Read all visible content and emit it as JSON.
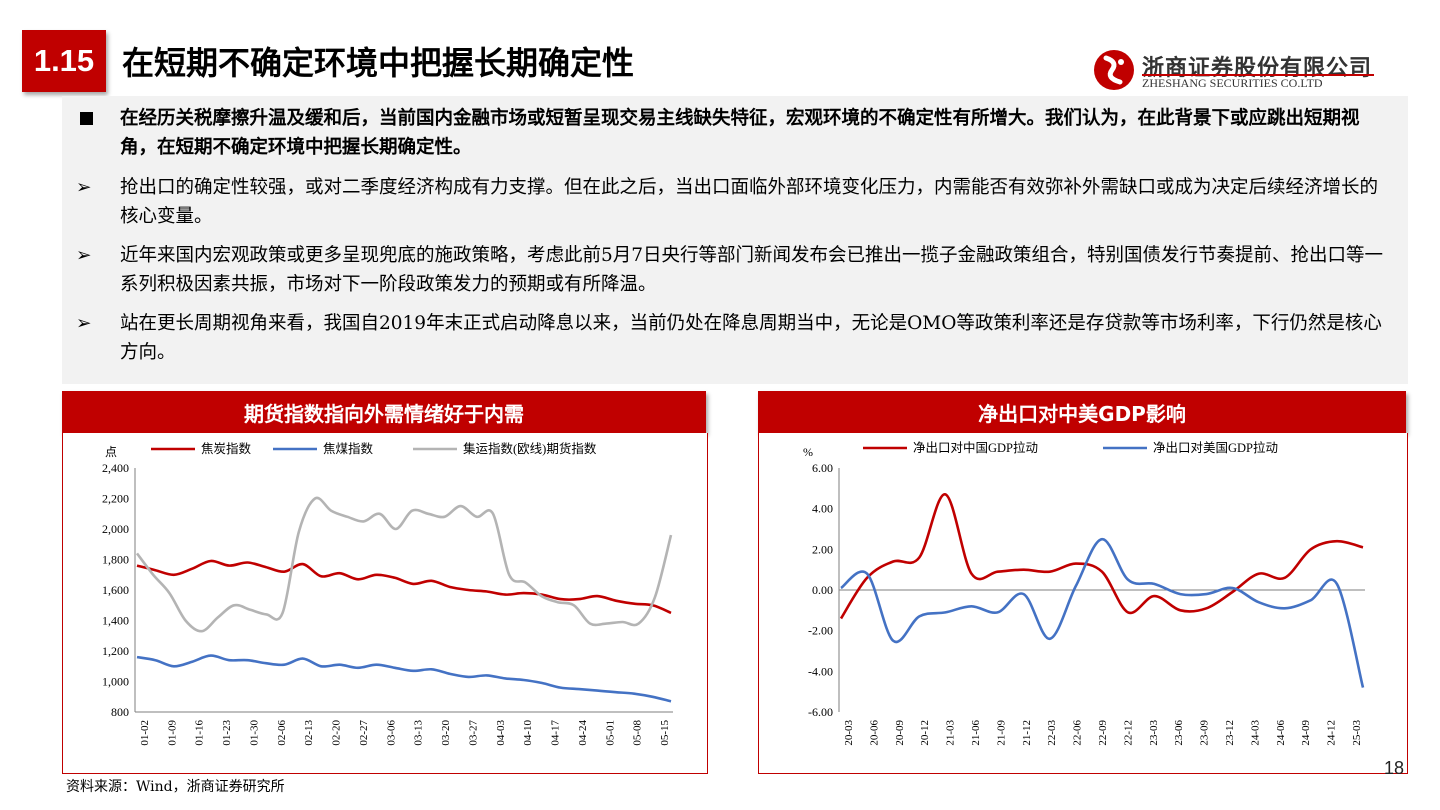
{
  "header": {
    "section_number": "1.15",
    "title": "在短期不确定环境中把握长期确定性",
    "logo_cn": "浙商证券股份有限公司",
    "logo_en": "ZHESHANG SECURITIES CO.LTD"
  },
  "summary": {
    "bullets": [
      {
        "marker": "■",
        "text": "在经历关税摩擦升温及缓和后，当前国内金融市场或短暂呈现交易主线缺失特征，宏观环境的不确定性有所增大。我们认为，在此背景下或应跳出短期视角，在短期不确定环境中把握长期确定性。"
      },
      {
        "marker": "➢",
        "text": "抢出口的确定性较强，或对二季度经济构成有力支撑。但在此之后，当出口面临外部环境变化压力，内需能否有效弥补外需缺口或成为决定后续经济增长的核心变量。"
      },
      {
        "marker": "➢",
        "text": "近年来国内宏观政策或更多呈现兜底的施政策略，考虑此前5月7日央行等部门新闻发布会已推出一揽子金融政策组合，特别国债发行节奏提前、抢出口等一系列积极因素共振，市场对下一阶段政策发力的预期或有所降温。"
      },
      {
        "marker": "➢",
        "text": "站在更长周期视角来看，我国自2019年末正式启动降息以来，当前仍处在降息周期当中，无论是OMO等政策利率还是存贷款等市场利率，下行仍然是核心方向。"
      }
    ]
  },
  "source_note": "资料来源：Wind，浙商证券研究所",
  "page_number": "18",
  "colors": {
    "accent": "#c00000",
    "series_red": "#c00000",
    "series_blue": "#4472c4",
    "series_gray": "#b4b4b4"
  },
  "chart_data": [
    {
      "panel_title": "期货指数指向外需情绪好于内需",
      "type": "line",
      "ylabel": "点",
      "ylim": [
        800,
        2400
      ],
      "yticks": [
        "2,400",
        "2,200",
        "2,000",
        "1,800",
        "1,600",
        "1,400",
        "1,200",
        "1,000",
        "800"
      ],
      "xticks": [
        "01-02",
        "01-09",
        "01-16",
        "01-23",
        "01-30",
        "02-06",
        "02-13",
        "02-20",
        "02-27",
        "03-06",
        "03-13",
        "03-20",
        "03-27",
        "04-03",
        "04-10",
        "04-17",
        "04-24",
        "05-01",
        "05-08",
        "05-15"
      ],
      "legend_placement": "top",
      "series": [
        {
          "name": "焦炭指数",
          "color": "#c00000",
          "values": [
            1760,
            1730,
            1700,
            1740,
            1790,
            1760,
            1780,
            1750,
            1720,
            1770,
            1690,
            1710,
            1670,
            1700,
            1680,
            1640,
            1660,
            1620,
            1600,
            1590,
            1570,
            1580,
            1570,
            1540,
            1540,
            1560,
            1530,
            1510,
            1500,
            1450
          ]
        },
        {
          "name": "焦煤指数",
          "color": "#4472c4",
          "values": [
            1160,
            1140,
            1100,
            1130,
            1170,
            1140,
            1140,
            1120,
            1110,
            1150,
            1100,
            1110,
            1090,
            1110,
            1090,
            1070,
            1080,
            1050,
            1030,
            1040,
            1020,
            1010,
            990,
            960,
            950,
            940,
            930,
            920,
            900,
            870
          ]
        },
        {
          "name": "集运指数(欧线)期货指数",
          "color": "#b4b4b4",
          "values": [
            1840,
            1700,
            1580,
            1400,
            1330,
            1420,
            1500,
            1470,
            1440,
            1450,
            1980,
            2200,
            2120,
            2080,
            2050,
            2100,
            2000,
            2120,
            2100,
            2080,
            2150,
            2080,
            2100,
            1700,
            1650,
            1560,
            1520,
            1500,
            1380,
            1380,
            1390,
            1380,
            1550,
            1960
          ]
        }
      ]
    },
    {
      "panel_title": "净出口对中美GDP影响",
      "type": "line",
      "ylabel": "%",
      "ylim": [
        -6,
        6
      ],
      "yticks": [
        "6.00",
        "4.00",
        "2.00",
        "0.00",
        "-2.00",
        "-4.00",
        "-6.00"
      ],
      "xticks": [
        "20-03",
        "20-06",
        "20-09",
        "20-12",
        "21-03",
        "21-06",
        "21-09",
        "21-12",
        "22-03",
        "22-06",
        "22-09",
        "22-12",
        "23-03",
        "23-06",
        "23-09",
        "23-12",
        "24-03",
        "24-06",
        "24-09",
        "24-12",
        "25-03"
      ],
      "legend_placement": "top",
      "series": [
        {
          "name": "净出口对中国GDP拉动",
          "color": "#c00000",
          "values": [
            -1.4,
            0.6,
            1.4,
            1.6,
            4.7,
            0.8,
            0.9,
            1.0,
            0.9,
            1.3,
            0.9,
            -1.1,
            -0.3,
            -1.0,
            -0.9,
            -0.1,
            0.8,
            0.6,
            2.0,
            2.4,
            2.1
          ]
        },
        {
          "name": "净出口对美国GDP拉动",
          "color": "#4472c4",
          "values": [
            0.1,
            0.8,
            -2.5,
            -1.3,
            -1.1,
            -0.8,
            -1.1,
            -0.2,
            -2.4,
            0.2,
            2.5,
            0.5,
            0.3,
            -0.2,
            -0.2,
            0.1,
            -0.6,
            -0.9,
            -0.5,
            0.3,
            -4.8
          ]
        }
      ]
    }
  ]
}
